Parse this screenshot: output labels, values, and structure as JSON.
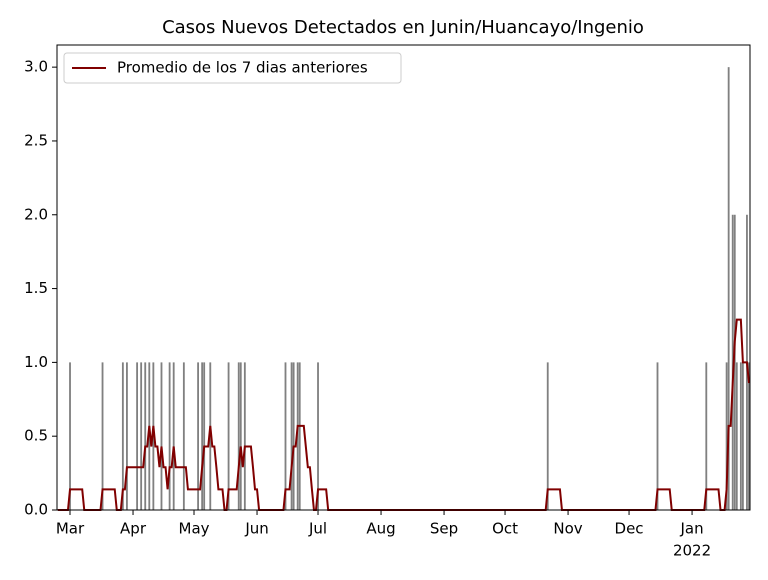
{
  "chart_data": {
    "type": "bar_line",
    "title": "Casos Nuevos Detectados en Junin/Huancayo/Ingenio",
    "year_label": "2022",
    "categories": [
      null,
      null,
      null,
      null,
      null,
      null,
      "Mar",
      null,
      null,
      null,
      null,
      null,
      null,
      null,
      null,
      null,
      null,
      null,
      null,
      null,
      null,
      null,
      null,
      null,
      null,
      null,
      null,
      null,
      null,
      null,
      null,
      null,
      null,
      null,
      null,
      null,
      null,
      "Apr",
      null,
      null,
      null,
      null,
      null,
      null,
      null,
      null,
      null,
      null,
      null,
      null,
      null,
      null,
      null,
      null,
      null,
      null,
      null,
      null,
      null,
      null,
      null,
      null,
      null,
      null,
      null,
      null,
      null,
      "May",
      null,
      null,
      null,
      null,
      null,
      null,
      null,
      null,
      null,
      null,
      null,
      null,
      null,
      null,
      null,
      null,
      null,
      null,
      null,
      null,
      null,
      null,
      null,
      null,
      null,
      null,
      null,
      null,
      null,
      null,
      "Jun",
      null,
      null,
      null,
      null,
      null,
      null,
      null,
      null,
      null,
      null,
      null,
      null,
      null,
      null,
      null,
      null,
      null,
      null,
      null,
      null,
      null,
      null,
      null,
      null,
      null,
      null,
      null,
      null,
      null,
      "Jul",
      null,
      null,
      null,
      null,
      null,
      null,
      null,
      null,
      null,
      null,
      null,
      null,
      null,
      null,
      null,
      null,
      null,
      null,
      null,
      null,
      null,
      null,
      null,
      null,
      null,
      null,
      null,
      null,
      null,
      null,
      "Aug",
      null,
      null,
      null,
      null,
      null,
      null,
      null,
      null,
      null,
      null,
      null,
      null,
      null,
      null,
      null,
      null,
      null,
      null,
      null,
      null,
      null,
      null,
      null,
      null,
      null,
      null,
      null,
      null,
      null,
      null,
      "Sep",
      null,
      null,
      null,
      null,
      null,
      null,
      null,
      null,
      null,
      null,
      null,
      null,
      null,
      null,
      null,
      null,
      null,
      null,
      null,
      null,
      null,
      null,
      null,
      null,
      null,
      null,
      null,
      null,
      null,
      "Oct",
      null,
      null,
      null,
      null,
      null,
      null,
      null,
      null,
      null,
      null,
      null,
      null,
      null,
      null,
      null,
      null,
      null,
      null,
      null,
      null,
      null,
      null,
      null,
      null,
      null,
      null,
      null,
      null,
      null,
      null,
      "Nov",
      null,
      null,
      null,
      null,
      null,
      null,
      null,
      null,
      null,
      null,
      null,
      null,
      null,
      null,
      null,
      null,
      null,
      null,
      null,
      null,
      null,
      null,
      null,
      null,
      null,
      null,
      null,
      null,
      null,
      "Dec",
      null,
      null,
      null,
      null,
      null,
      null,
      null,
      null,
      null,
      null,
      null,
      null,
      null,
      null,
      null,
      null,
      null,
      null,
      null,
      null,
      null,
      null,
      null,
      null,
      null,
      null,
      null,
      null,
      null,
      null,
      "Jan",
      null,
      null,
      null,
      null,
      null,
      null,
      null,
      null,
      null,
      null,
      null,
      null,
      null,
      null,
      null,
      null,
      null,
      null,
      null,
      null,
      null,
      null,
      null,
      null,
      null,
      null,
      null,
      null
    ],
    "series": [
      {
        "kind": "bar",
        "color": "#808080",
        "values": [
          0,
          0,
          0,
          0,
          0,
          0,
          1,
          0,
          0,
          0,
          0,
          0,
          0,
          0,
          0,
          0,
          0,
          0,
          0,
          0,
          0,
          0,
          1,
          0,
          0,
          0,
          0,
          0,
          0,
          0,
          0,
          0,
          1,
          0,
          1,
          0,
          0,
          0,
          0,
          1,
          0,
          1,
          0,
          1,
          0,
          1,
          0,
          1,
          0,
          0,
          0,
          1,
          0,
          0,
          0,
          1,
          0,
          1,
          0,
          0,
          0,
          0,
          1,
          0,
          0,
          0,
          0,
          0,
          0,
          1,
          0,
          1,
          1,
          0,
          0,
          1,
          0,
          0,
          0,
          0,
          0,
          0,
          0,
          0,
          1,
          0,
          0,
          0,
          0,
          1,
          1,
          0,
          1,
          0,
          0,
          0,
          0,
          0,
          0,
          0,
          0,
          0,
          0,
          0,
          0,
          0,
          0,
          0,
          0,
          0,
          0,
          0,
          1,
          0,
          0,
          1,
          1,
          0,
          1,
          1,
          0,
          0,
          0,
          0,
          0,
          0,
          0,
          0,
          1,
          0,
          0,
          0,
          0,
          0,
          0,
          0,
          0,
          0,
          0,
          0,
          0,
          0,
          0,
          0,
          0,
          0,
          0,
          0,
          0,
          0,
          0,
          0,
          0,
          0,
          0,
          0,
          0,
          0,
          0,
          0,
          0,
          0,
          0,
          0,
          0,
          0,
          0,
          0,
          0,
          0,
          0,
          0,
          0,
          0,
          0,
          0,
          0,
          0,
          0,
          0,
          0,
          0,
          0,
          0,
          0,
          0,
          0,
          0,
          0,
          0,
          0,
          0,
          0,
          0,
          0,
          0,
          0,
          0,
          0,
          0,
          0,
          0,
          0,
          0,
          0,
          0,
          0,
          0,
          0,
          0,
          0,
          0,
          0,
          0,
          0,
          0,
          0,
          0,
          0,
          0,
          0,
          0,
          0,
          0,
          0,
          0,
          0,
          0,
          0,
          0,
          0,
          0,
          0,
          0,
          0,
          0,
          0,
          0,
          0,
          0,
          0,
          1,
          0,
          0,
          0,
          0,
          0,
          0,
          0,
          0,
          0,
          0,
          0,
          0,
          0,
          0,
          0,
          0,
          0,
          0,
          0,
          0,
          0,
          0,
          0,
          0,
          0,
          0,
          0,
          0,
          0,
          0,
          0,
          0,
          0,
          0,
          0,
          0,
          0,
          0,
          0,
          0,
          0,
          0,
          0,
          0,
          0,
          0,
          0,
          0,
          0,
          0,
          0,
          0,
          0,
          1,
          0,
          0,
          0,
          0,
          0,
          0,
          0,
          0,
          0,
          0,
          0,
          0,
          0,
          0,
          0,
          0,
          0,
          0,
          0,
          0,
          0,
          0,
          0,
          1,
          0,
          0,
          0,
          0,
          0,
          0,
          0,
          0,
          0,
          1,
          3,
          0,
          2,
          2,
          1,
          0,
          1,
          1,
          0,
          2,
          1
        ]
      },
      {
        "kind": "line",
        "name": "Promedio de los 7 dias anteriores",
        "color": "#800000",
        "values": [
          0,
          0,
          0,
          0,
          0,
          0,
          0.14,
          0.14,
          0.14,
          0.14,
          0.14,
          0.14,
          0.14,
          0,
          0,
          0,
          0,
          0,
          0,
          0,
          0,
          0,
          0.14,
          0.14,
          0.14,
          0.14,
          0.14,
          0.14,
          0.14,
          0,
          0,
          0,
          0.14,
          0.14,
          0.29,
          0.29,
          0.29,
          0.29,
          0.29,
          0.29,
          0.29,
          0.29,
          0.29,
          0.43,
          0.43,
          0.57,
          0.43,
          0.57,
          0.43,
          0.43,
          0.29,
          0.43,
          0.29,
          0.29,
          0.14,
          0.29,
          0.29,
          0.43,
          0.29,
          0.29,
          0.29,
          0.29,
          0.29,
          0.29,
          0.14,
          0.14,
          0.14,
          0.14,
          0.14,
          0.14,
          0.14,
          0.29,
          0.43,
          0.43,
          0.43,
          0.57,
          0.43,
          0.43,
          0.29,
          0.14,
          0.14,
          0.14,
          0,
          0,
          0.14,
          0.14,
          0.14,
          0.14,
          0.14,
          0.29,
          0.43,
          0.29,
          0.43,
          0.43,
          0.43,
          0.43,
          0.29,
          0.14,
          0.14,
          0,
          0,
          0,
          0,
          0,
          0,
          0,
          0,
          0,
          0,
          0,
          0,
          0,
          0.14,
          0.14,
          0.14,
          0.29,
          0.43,
          0.43,
          0.57,
          0.57,
          0.57,
          0.57,
          0.43,
          0.29,
          0.29,
          0.14,
          0,
          0,
          0.14,
          0.14,
          0.14,
          0.14,
          0.14,
          0,
          0,
          0,
          0,
          0,
          0,
          0,
          0,
          0,
          0,
          0,
          0,
          0,
          0,
          0,
          0,
          0,
          0,
          0,
          0,
          0,
          0,
          0,
          0,
          0,
          0,
          0,
          0,
          0,
          0,
          0,
          0,
          0,
          0,
          0,
          0,
          0,
          0,
          0,
          0,
          0,
          0,
          0,
          0,
          0,
          0,
          0,
          0,
          0,
          0,
          0,
          0,
          0,
          0,
          0,
          0,
          0,
          0,
          0,
          0,
          0,
          0,
          0,
          0,
          0,
          0,
          0,
          0,
          0,
          0,
          0,
          0,
          0,
          0,
          0,
          0,
          0,
          0,
          0,
          0,
          0,
          0,
          0,
          0,
          0,
          0,
          0,
          0,
          0,
          0,
          0,
          0,
          0,
          0,
          0,
          0,
          0,
          0,
          0,
          0,
          0,
          0,
          0,
          0,
          0,
          0,
          0,
          0,
          0.14,
          0.14,
          0.14,
          0.14,
          0.14,
          0.14,
          0.14,
          0,
          0,
          0,
          0,
          0,
          0,
          0,
          0,
          0,
          0,
          0,
          0,
          0,
          0,
          0,
          0,
          0,
          0,
          0,
          0,
          0,
          0,
          0,
          0,
          0,
          0,
          0,
          0,
          0,
          0,
          0,
          0,
          0,
          0,
          0,
          0,
          0,
          0,
          0,
          0,
          0,
          0,
          0,
          0,
          0,
          0,
          0,
          0.14,
          0.14,
          0.14,
          0.14,
          0.14,
          0.14,
          0.14,
          0,
          0,
          0,
          0,
          0,
          0,
          0,
          0,
          0,
          0,
          0,
          0,
          0,
          0,
          0,
          0,
          0,
          0.14,
          0.14,
          0.14,
          0.14,
          0.14,
          0.14,
          0.14,
          0,
          0,
          0,
          0.14,
          0.57,
          0.57,
          0.86,
          1.14,
          1.29,
          1.29,
          1.29,
          1.0,
          1.0,
          1.0,
          0.86
        ]
      }
    ],
    "ylim": [
      0,
      3.15
    ],
    "yticks": [
      {
        "value": 0,
        "label": "0.0"
      },
      {
        "value": 0.5,
        "label": "0.5"
      },
      {
        "value": 1,
        "label": "1.0"
      },
      {
        "value": 1.5,
        "label": "1.5"
      },
      {
        "value": 2,
        "label": "2.0"
      },
      {
        "value": 2.5,
        "label": "2.5"
      },
      {
        "value": 3,
        "label": "3.0"
      }
    ],
    "legend": "upper left"
  }
}
